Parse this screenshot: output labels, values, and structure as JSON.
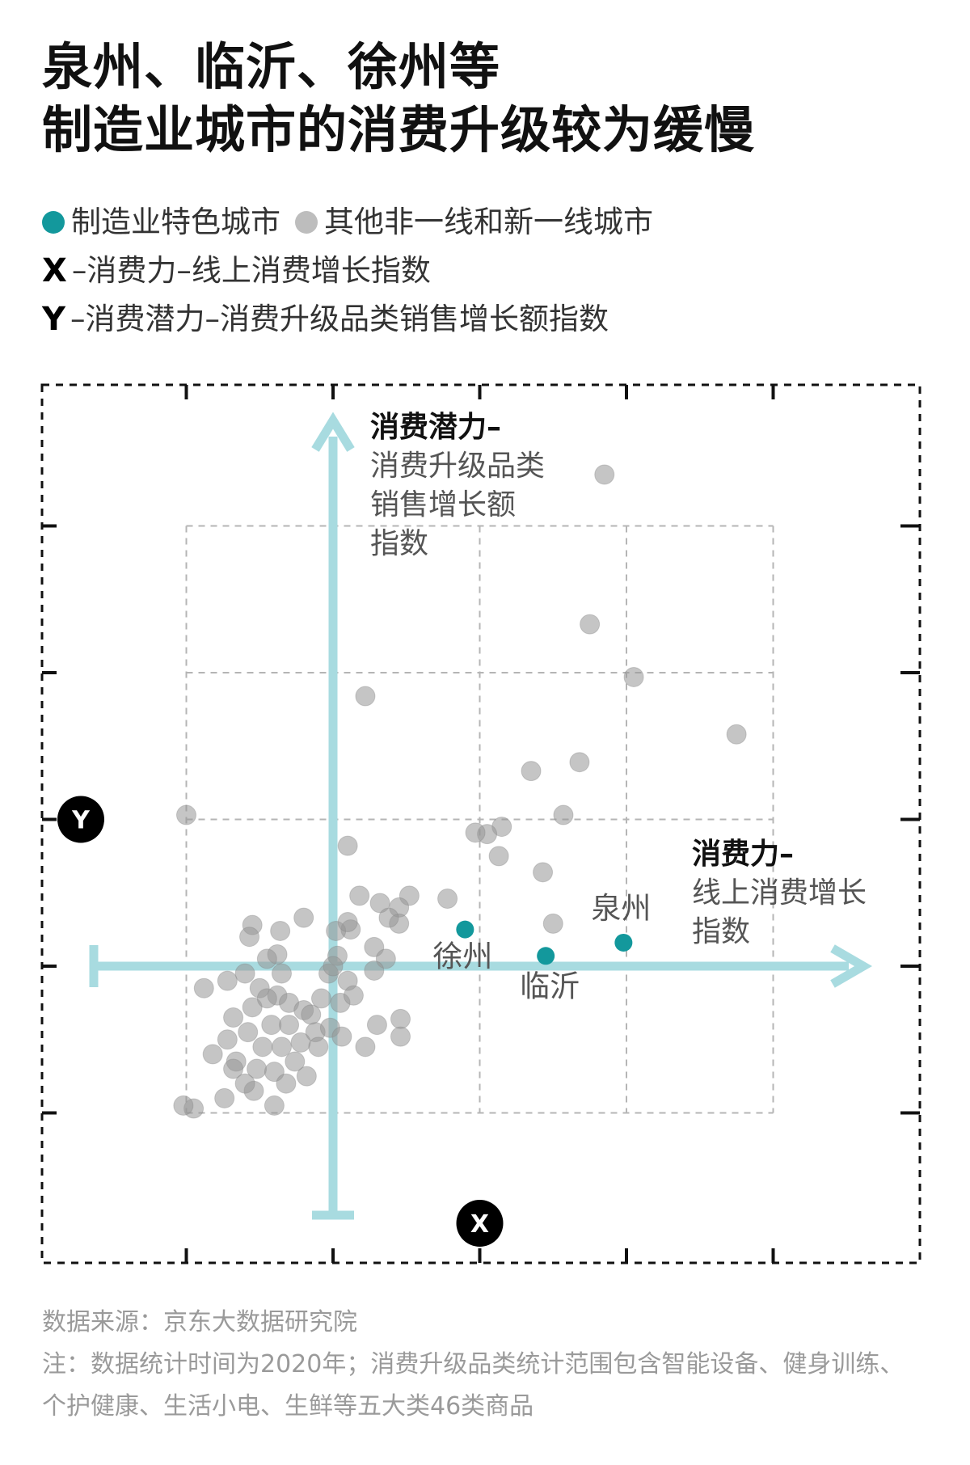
{
  "title": {
    "line1": "泉州、临沂、徐州等",
    "line2": "制造业城市的消费升级较为缓慢"
  },
  "legend": {
    "manufacturing": "制造业特色城市",
    "other": "其他非一线和新一线城市",
    "x_key": "X",
    "x_desc": "–消费力–线上消费增长指数",
    "y_key": "Y",
    "y_desc": "–消费潜力–消费升级品类销售增长额指数"
  },
  "colors": {
    "manufacturing": "#13989c",
    "other": "#bdbdbd",
    "axis": "#a8dbe0",
    "frame": "#111111",
    "grid": "#b5b5b5"
  },
  "chart_data": {
    "type": "scatter",
    "x_badge": "X",
    "y_badge": "Y",
    "y_axis_label": {
      "bold": "消费潜力–",
      "lines": [
        "消费升级品类",
        "销售增长额",
        "指数"
      ]
    },
    "x_axis_label": {
      "bold": "消费力–",
      "lines": [
        "线上消费增长",
        "指数"
      ]
    },
    "xlim": [
      -1,
      5
    ],
    "ylim": [
      -2,
      4
    ],
    "origin": [
      0,
      0
    ],
    "grid": true,
    "series": [
      {
        "name": "制造业特色城市",
        "points": [
          {
            "x": 0.9,
            "y": 0.25,
            "label": "徐州"
          },
          {
            "x": 1.45,
            "y": 0.07,
            "label": "临沂"
          },
          {
            "x": 1.98,
            "y": 0.16,
            "label": "泉州"
          }
        ]
      },
      {
        "name": "其他非一线和新一线城市",
        "points": [
          {
            "x": 1.85,
            "y": 3.35
          },
          {
            "x": 1.75,
            "y": 2.33
          },
          {
            "x": 2.05,
            "y": 1.97
          },
          {
            "x": 2.75,
            "y": 1.58
          },
          {
            "x": 0.22,
            "y": 1.84
          },
          {
            "x": 1.35,
            "y": 1.33
          },
          {
            "x": 1.68,
            "y": 1.39
          },
          {
            "x": 1.57,
            "y": 1.03
          },
          {
            "x": 1.15,
            "y": 0.95
          },
          {
            "x": 1.05,
            "y": 0.9
          },
          {
            "x": -1.0,
            "y": 1.03
          },
          {
            "x": 0.97,
            "y": 0.91
          },
          {
            "x": 1.13,
            "y": 0.75
          },
          {
            "x": 0.1,
            "y": 0.82
          },
          {
            "x": 1.43,
            "y": 0.64
          },
          {
            "x": 1.5,
            "y": 0.29
          },
          {
            "x": 0.78,
            "y": 0.46
          },
          {
            "x": 0.52,
            "y": 0.48
          },
          {
            "x": 0.18,
            "y": 0.48
          },
          {
            "x": 0.32,
            "y": 0.43
          },
          {
            "x": 0.45,
            "y": 0.4
          },
          {
            "x": 0.45,
            "y": 0.29
          },
          {
            "x": 0.38,
            "y": 0.33
          },
          {
            "x": 0.12,
            "y": 0.25
          },
          {
            "x": 0.02,
            "y": 0.24
          },
          {
            "x": -0.2,
            "y": 0.33
          },
          {
            "x": -0.36,
            "y": 0.24
          },
          {
            "x": -0.55,
            "y": 0.28
          },
          {
            "x": -0.57,
            "y": 0.2
          },
          {
            "x": -0.38,
            "y": 0.08
          },
          {
            "x": -0.35,
            "y": -0.05
          },
          {
            "x": -0.03,
            "y": -0.05
          },
          {
            "x": 0.03,
            "y": 0.07
          },
          {
            "x": 0.1,
            "y": 0.3
          },
          {
            "x": 0.0,
            "y": 0.0
          },
          {
            "x": 0.28,
            "y": 0.13
          },
          {
            "x": 0.36,
            "y": 0.05
          },
          {
            "x": -0.45,
            "y": 0.05
          },
          {
            "x": -0.6,
            "y": -0.05
          },
          {
            "x": -0.72,
            "y": -0.1
          },
          {
            "x": -0.88,
            "y": -0.15
          },
          {
            "x": -0.5,
            "y": -0.15
          },
          {
            "x": -0.38,
            "y": -0.2
          },
          {
            "x": -0.55,
            "y": -0.28
          },
          {
            "x": -0.3,
            "y": -0.25
          },
          {
            "x": -0.2,
            "y": -0.3
          },
          {
            "x": -0.08,
            "y": -0.22
          },
          {
            "x": 0.1,
            "y": -0.1
          },
          {
            "x": 0.28,
            "y": -0.03
          },
          {
            "x": 0.05,
            "y": -0.25
          },
          {
            "x": -0.68,
            "y": -0.35
          },
          {
            "x": -0.42,
            "y": -0.4
          },
          {
            "x": -0.3,
            "y": -0.4
          },
          {
            "x": -0.12,
            "y": -0.45
          },
          {
            "x": -0.02,
            "y": -0.42
          },
          {
            "x": -0.72,
            "y": -0.5
          },
          {
            "x": -0.58,
            "y": -0.45
          },
          {
            "x": -0.48,
            "y": -0.55
          },
          {
            "x": -0.35,
            "y": -0.55
          },
          {
            "x": -0.22,
            "y": -0.52
          },
          {
            "x": -0.1,
            "y": -0.55
          },
          {
            "x": -0.26,
            "y": -0.65
          },
          {
            "x": -0.82,
            "y": -0.6
          },
          {
            "x": -0.66,
            "y": -0.65
          },
          {
            "x": -0.52,
            "y": -0.7
          },
          {
            "x": -0.4,
            "y": -0.72
          },
          {
            "x": -0.54,
            "y": -0.85
          },
          {
            "x": -0.32,
            "y": -0.8
          },
          {
            "x": -0.18,
            "y": -0.75
          },
          {
            "x": 0.06,
            "y": -0.48
          },
          {
            "x": 0.22,
            "y": -0.55
          },
          {
            "x": 0.46,
            "y": -0.36
          },
          {
            "x": 0.3,
            "y": -0.4
          },
          {
            "x": 0.46,
            "y": -0.48
          },
          {
            "x": 0.14,
            "y": -0.2
          },
          {
            "x": -0.6,
            "y": -0.8
          },
          {
            "x": -0.95,
            "y": -0.97
          },
          {
            "x": -1.02,
            "y": -0.95
          },
          {
            "x": -0.74,
            "y": -0.9
          },
          {
            "x": -0.4,
            "y": -0.95
          },
          {
            "x": -0.68,
            "y": -0.7
          },
          {
            "x": -0.45,
            "y": -0.22
          },
          {
            "x": -0.15,
            "y": -0.33
          }
        ]
      }
    ]
  },
  "footer": {
    "source": "数据来源：京东大数据研究院",
    "note_line1": "注：数据统计时间为2020年；消费升级品类统计范围包含智能设备、健身训练、",
    "note_line2": "个护健康、生活小电、生鲜等五大类46类商品"
  }
}
